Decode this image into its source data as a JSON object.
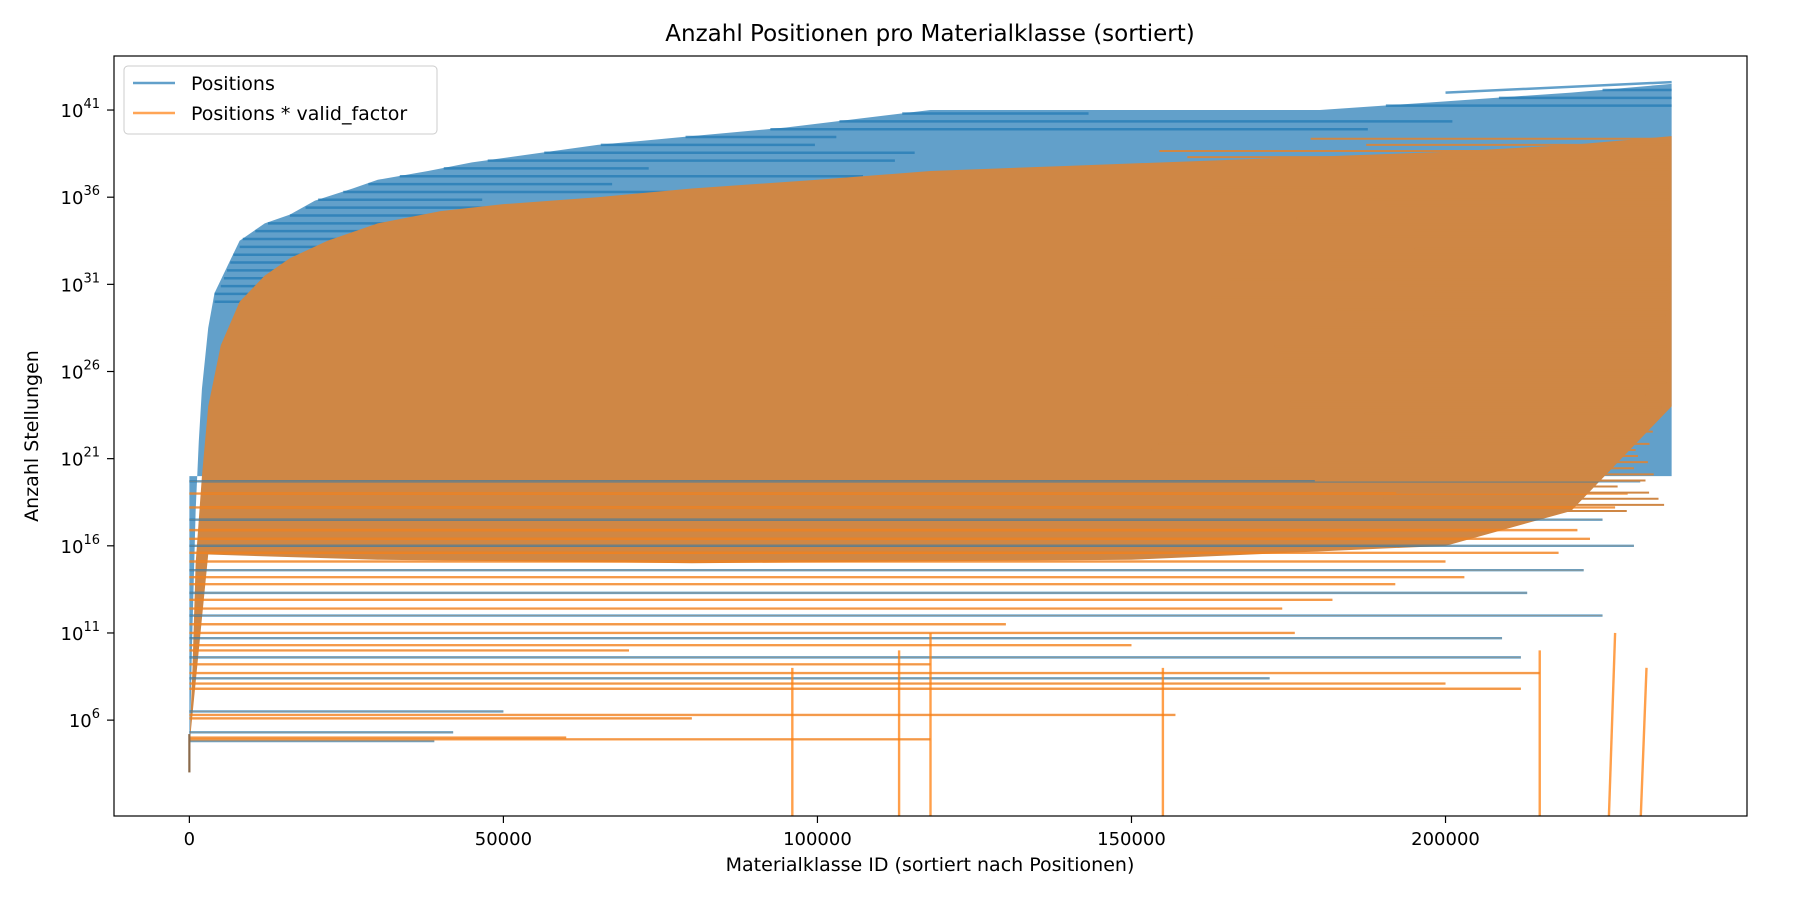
{
  "chart_data": {
    "type": "line",
    "title": "Anzahl Positionen pro Materialklasse (sortiert)",
    "xlabel": "Materialklasse ID (sortiert nach Positionen)",
    "ylabel": "Anzahl Stellungen",
    "xlim": [
      -12000,
      248000
    ],
    "ylim_log10": [
      0.5,
      44.1
    ],
    "y_scale": "log",
    "x_ticks": [
      0,
      50000,
      100000,
      150000,
      200000
    ],
    "x_tick_labels": [
      "0",
      "50000",
      "100000",
      "150000",
      "200000"
    ],
    "y_ticks": [
      {
        "base": "10",
        "exp": "6",
        "log": 6
      },
      {
        "base": "10",
        "exp": "11",
        "log": 11
      },
      {
        "base": "10",
        "exp": "16",
        "log": 16
      },
      {
        "base": "10",
        "exp": "21",
        "log": 21
      },
      {
        "base": "10",
        "exp": "26",
        "log": 26
      },
      {
        "base": "10",
        "exp": "31",
        "log": 31
      },
      {
        "base": "10",
        "exp": "36",
        "log": 36
      },
      {
        "base": "10",
        "exp": "41",
        "log": 41
      }
    ],
    "legend_position": "top-left",
    "series": [
      {
        "name": "Positions",
        "color": "#1f77b4",
        "upper_envelope": {
          "x": [
            0,
            200,
            400,
            700,
            1000,
            1500,
            2000,
            3000,
            4000,
            6000,
            8000,
            12000,
            16000,
            20000,
            26000,
            30000,
            38000,
            45000,
            55000,
            65000,
            80000,
            95000,
            118000,
            150000,
            180000,
            200000,
            220000,
            236000
          ],
          "y_log": [
            4.0,
            6.5,
            10.0,
            14.0,
            18.0,
            22.0,
            25.0,
            28.5,
            30.5,
            32.0,
            33.5,
            34.5,
            35.0,
            35.8,
            36.5,
            37.0,
            37.5,
            38.0,
            38.5,
            39.0,
            39.5,
            40.0,
            41.0,
            41.0,
            41.0,
            41.5,
            42.0,
            42.5
          ]
        }
      },
      {
        "name": "Positions * valid_factor",
        "color": "#ff7f0e",
        "upper_envelope": {
          "x": [
            0,
            500,
            1000,
            2000,
            3000,
            5000,
            8000,
            12000,
            16000,
            22000,
            30000,
            40000,
            50000,
            65000,
            80000,
            100000,
            118000,
            140000,
            170000,
            200000,
            220000,
            236000
          ],
          "y_log": [
            4.5,
            9.0,
            15.0,
            20.0,
            24.0,
            27.5,
            30.0,
            31.5,
            32.5,
            33.5,
            34.5,
            35.2,
            35.6,
            36.0,
            36.5,
            37.0,
            37.5,
            37.8,
            38.2,
            38.6,
            39.0,
            39.5
          ]
        },
        "lower_envelope": {
          "x": [
            0,
            3000,
            30000,
            80000,
            150000,
            200000,
            220000,
            236000
          ],
          "y_log": [
            4.5,
            15.5,
            15.2,
            15.0,
            15.2,
            16.0,
            18.0,
            24.0
          ]
        },
        "drop_lines_x": [
          96000,
          113000,
          118000,
          155000,
          215000,
          227000,
          232000
        ]
      }
    ]
  }
}
